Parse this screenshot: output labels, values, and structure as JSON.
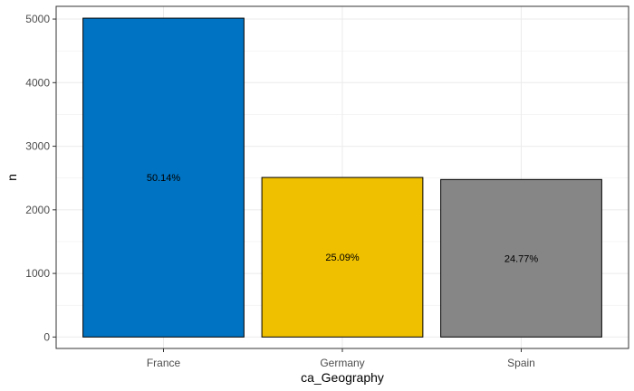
{
  "chart_data": {
    "type": "bar",
    "title": "",
    "xlabel": "ca_Geography",
    "ylabel": "n",
    "categories": [
      "France",
      "Germany",
      "Spain"
    ],
    "values": [
      5014,
      2509,
      2477
    ],
    "data_labels": [
      "50.14%",
      "25.09%",
      "24.77%"
    ],
    "colors": [
      "#0073C2",
      "#EFC000",
      "#868686"
    ],
    "ylim": [
      -180,
      5200
    ],
    "yticks": [
      0,
      1000,
      2000,
      3000,
      4000,
      5000
    ],
    "grid": true,
    "legend": "none"
  }
}
